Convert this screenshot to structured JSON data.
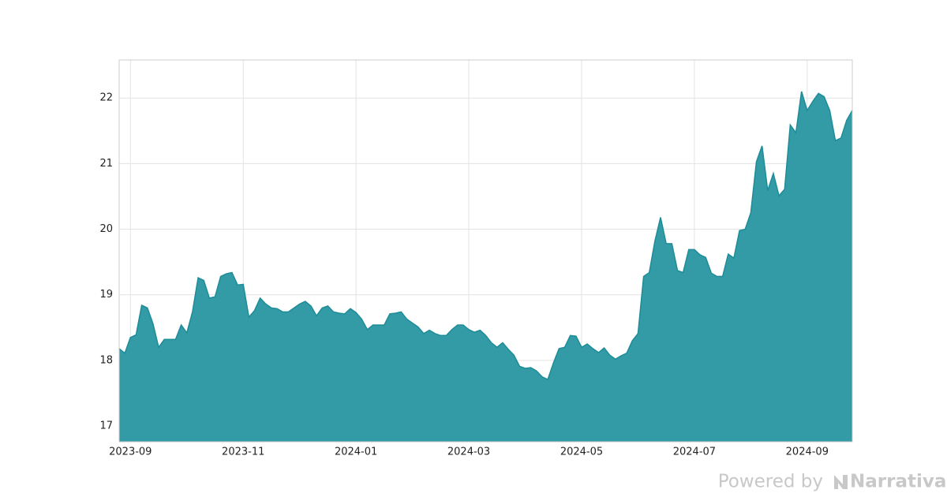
{
  "chart_data": {
    "type": "area",
    "categories": [
      null,
      null,
      "2023-09",
      null,
      null,
      null,
      null,
      null,
      null,
      null,
      null,
      null,
      null,
      null,
      null,
      null,
      null,
      null,
      null,
      null,
      null,
      null,
      "2023-11",
      null,
      null,
      null,
      null,
      null,
      null,
      null,
      null,
      null,
      null,
      null,
      null,
      null,
      null,
      null,
      null,
      null,
      null,
      null,
      "2024-01",
      null,
      null,
      null,
      null,
      null,
      null,
      null,
      null,
      null,
      null,
      null,
      null,
      null,
      null,
      null,
      null,
      null,
      null,
      null,
      "2024-03",
      null,
      null,
      null,
      null,
      null,
      null,
      null,
      null,
      null,
      null,
      null,
      null,
      null,
      null,
      null,
      null,
      null,
      null,
      null,
      "2024-05",
      null,
      null,
      null,
      null,
      null,
      null,
      null,
      null,
      null,
      null,
      null,
      null,
      null,
      null,
      null,
      null,
      null,
      null,
      null,
      "2024-07",
      null,
      null,
      null,
      null,
      null,
      null,
      null,
      null,
      null,
      null,
      null,
      null,
      null,
      null,
      null,
      null,
      null,
      null,
      null,
      "2024-09",
      null,
      null,
      null,
      null,
      null,
      null,
      null,
      null
    ],
    "values": [
      18.18,
      18.11,
      18.35,
      18.39,
      18.84,
      18.8,
      18.56,
      18.2,
      18.32,
      18.32,
      18.32,
      18.54,
      18.42,
      18.74,
      19.26,
      19.22,
      18.95,
      18.97,
      19.28,
      19.32,
      19.34,
      19.15,
      19.16,
      18.66,
      18.76,
      18.95,
      18.86,
      18.8,
      18.79,
      18.74,
      18.74,
      18.8,
      18.86,
      18.9,
      18.83,
      18.68,
      18.8,
      18.83,
      18.74,
      18.72,
      18.71,
      18.79,
      18.73,
      18.63,
      18.47,
      18.54,
      18.54,
      18.54,
      18.71,
      18.72,
      18.74,
      18.63,
      18.57,
      18.51,
      18.41,
      18.46,
      18.41,
      18.38,
      18.38,
      18.47,
      18.54,
      18.54,
      18.47,
      18.43,
      18.46,
      18.38,
      18.27,
      18.2,
      18.27,
      18.17,
      18.08,
      17.91,
      17.88,
      17.89,
      17.84,
      17.75,
      17.71,
      17.96,
      18.18,
      18.2,
      18.38,
      18.37,
      18.2,
      18.25,
      18.18,
      18.12,
      18.19,
      18.08,
      18.02,
      18.07,
      18.11,
      18.3,
      18.41,
      19.28,
      19.34,
      19.82,
      20.18,
      19.78,
      19.78,
      19.37,
      19.34,
      19.69,
      19.69,
      19.61,
      19.57,
      19.33,
      19.28,
      19.28,
      19.62,
      19.56,
      19.98,
      20.0,
      20.25,
      21.03,
      21.27,
      20.59,
      20.85,
      20.51,
      20.61,
      21.59,
      21.47,
      22.1,
      21.81,
      21.95,
      22.07,
      22.02,
      21.81,
      21.35,
      21.39,
      21.66,
      21.81
    ],
    "color": "#339ba6",
    "line_color": "#1e8c98",
    "ylim": [
      16.76,
      22.58
    ],
    "yticks": [
      17,
      18,
      19,
      20,
      21,
      22
    ],
    "grid": true
  },
  "footer": {
    "powered_by": "Powered by",
    "brand": "Narrativa"
  }
}
